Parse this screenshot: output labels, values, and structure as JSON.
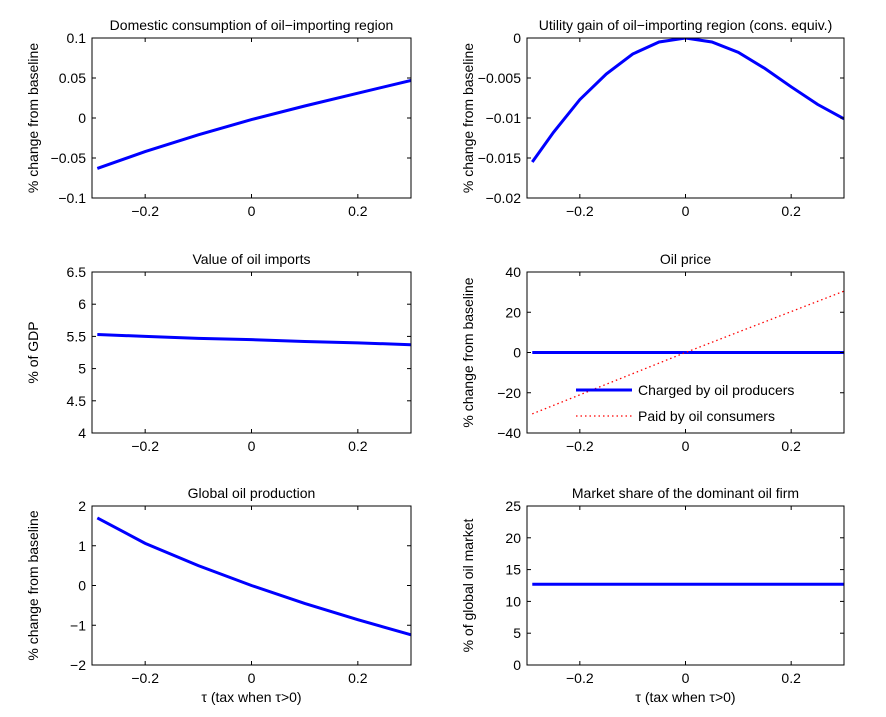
{
  "chart_data": [
    {
      "type": "line",
      "title": "Domestic consumption of oil−importing region",
      "xlabel": "",
      "ylabel": "% change from baseline",
      "xlim": [
        -0.3,
        0.3
      ],
      "ylim": [
        -0.1,
        0.1
      ],
      "xticks": [
        -0.2,
        0,
        0.2
      ],
      "xtick_labels": [
        "−0.2",
        "0",
        "0.2"
      ],
      "yticks": [
        -0.1,
        -0.05,
        0,
        0.05,
        0.1
      ],
      "ytick_labels": [
        "−0.1",
        "−0.05",
        "0",
        "0.05",
        "0.1"
      ],
      "grid": false,
      "series": [
        {
          "color": "#0000ff",
          "style": "solid",
          "x": [
            -0.29,
            -0.2,
            -0.1,
            0,
            0.1,
            0.2,
            0.3
          ],
          "y": [
            -0.063,
            -0.042,
            -0.021,
            -0.002,
            0.015,
            0.031,
            0.047
          ]
        }
      ]
    },
    {
      "type": "line",
      "title": "Utility gain of oil−importing region (cons. equiv.)",
      "xlabel": "",
      "ylabel": "% change from baseline",
      "xlim": [
        -0.3,
        0.3
      ],
      "ylim": [
        -0.02,
        0
      ],
      "xticks": [
        -0.2,
        0,
        0.2
      ],
      "xtick_labels": [
        "−0.2",
        "0",
        "0.2"
      ],
      "yticks": [
        -0.02,
        -0.015,
        -0.01,
        -0.005,
        0
      ],
      "ytick_labels": [
        "−0.02",
        "−0.015",
        "−0.01",
        "−0.005",
        "0"
      ],
      "grid": false,
      "series": [
        {
          "color": "#0000ff",
          "style": "solid",
          "x": [
            -0.29,
            -0.25,
            -0.2,
            -0.15,
            -0.1,
            -0.05,
            0,
            0.05,
            0.1,
            0.15,
            0.2,
            0.25,
            0.3
          ],
          "y": [
            -0.0155,
            -0.0118,
            -0.0077,
            -0.0045,
            -0.002,
            -0.0005,
            0,
            -0.0005,
            -0.0018,
            -0.0038,
            -0.0061,
            -0.0083,
            -0.0101
          ]
        }
      ]
    },
    {
      "type": "line",
      "title": "Value of oil imports",
      "xlabel": "",
      "ylabel": "% of GDP",
      "xlim": [
        -0.3,
        0.3
      ],
      "ylim": [
        4,
        6.5
      ],
      "xticks": [
        -0.2,
        0,
        0.2
      ],
      "xtick_labels": [
        "−0.2",
        "0",
        "0.2"
      ],
      "yticks": [
        4,
        4.5,
        5,
        5.5,
        6,
        6.5
      ],
      "ytick_labels": [
        "4",
        "4.5",
        "5",
        "5.5",
        "6",
        "6.5"
      ],
      "grid": false,
      "series": [
        {
          "color": "#0000ff",
          "style": "solid",
          "x": [
            -0.29,
            -0.2,
            -0.1,
            0,
            0.1,
            0.2,
            0.3
          ],
          "y": [
            5.53,
            5.5,
            5.47,
            5.45,
            5.42,
            5.4,
            5.37
          ]
        }
      ]
    },
    {
      "type": "line",
      "title": "Oil price",
      "xlabel": "",
      "ylabel": "% change from baseline",
      "xlim": [
        -0.3,
        0.3
      ],
      "ylim": [
        -40,
        40
      ],
      "xticks": [
        -0.2,
        0,
        0.2
      ],
      "xtick_labels": [
        "−0.2",
        "0",
        "0.2"
      ],
      "yticks": [
        -40,
        -20,
        0,
        20,
        40
      ],
      "ytick_labels": [
        "−40",
        "−20",
        "0",
        "20",
        "40"
      ],
      "grid": false,
      "legend": "lower-right",
      "series": [
        {
          "name": "Charged by oil producers",
          "color": "#0000ff",
          "style": "solid",
          "x": [
            -0.29,
            0.3
          ],
          "y": [
            0,
            0
          ]
        },
        {
          "name": "Paid by oil consumers",
          "color": "#ff0000",
          "style": "dotted",
          "x": [
            -0.29,
            0,
            0.3
          ],
          "y": [
            -30.5,
            0,
            30.5
          ]
        }
      ]
    },
    {
      "type": "line",
      "title": "Global oil production",
      "xlabel": "τ (tax when τ>0)",
      "ylabel": "% change from baseline",
      "xlim": [
        -0.3,
        0.3
      ],
      "ylim": [
        -2,
        2
      ],
      "xticks": [
        -0.2,
        0,
        0.2
      ],
      "xtick_labels": [
        "−0.2",
        "0",
        "0.2"
      ],
      "yticks": [
        -2,
        -1,
        0,
        1,
        2
      ],
      "ytick_labels": [
        "−2",
        "−1",
        "0",
        "1",
        "2"
      ],
      "grid": false,
      "series": [
        {
          "color": "#0000ff",
          "style": "solid",
          "x": [
            -0.29,
            -0.2,
            -0.1,
            0,
            0.1,
            0.2,
            0.3
          ],
          "y": [
            1.7,
            1.06,
            0.5,
            0,
            -0.45,
            -0.86,
            -1.24
          ]
        }
      ]
    },
    {
      "type": "line",
      "title": "Market share of the dominant oil firm",
      "xlabel": "τ (tax when τ>0)",
      "ylabel": "% of global oil market",
      "xlim": [
        -0.3,
        0.3
      ],
      "ylim": [
        0,
        25
      ],
      "xticks": [
        -0.2,
        0,
        0.2
      ],
      "xtick_labels": [
        "−0.2",
        "0",
        "0.2"
      ],
      "yticks": [
        0,
        5,
        10,
        15,
        20,
        25
      ],
      "ytick_labels": [
        "0",
        "5",
        "10",
        "15",
        "20",
        "25"
      ],
      "grid": false,
      "series": [
        {
          "color": "#0000ff",
          "style": "solid",
          "x": [
            -0.29,
            0.3
          ],
          "y": [
            12.7,
            12.7
          ]
        }
      ]
    }
  ]
}
